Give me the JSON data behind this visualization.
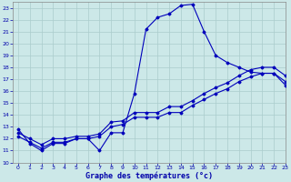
{
  "title": "Graphe des températures (°c)",
  "bg_color": "#cce8e8",
  "grid_color": "#aacccc",
  "line_color": "#0000bb",
  "xlim": [
    -0.5,
    23
  ],
  "ylim": [
    10,
    23.5
  ],
  "xticks": [
    0,
    1,
    2,
    3,
    4,
    5,
    6,
    7,
    8,
    9,
    10,
    11,
    12,
    13,
    14,
    15,
    16,
    17,
    18,
    19,
    20,
    21,
    22,
    23
  ],
  "yticks": [
    10,
    11,
    12,
    13,
    14,
    15,
    16,
    17,
    18,
    19,
    20,
    21,
    22,
    23
  ],
  "curve1_x": [
    0,
    1,
    2,
    3,
    4,
    5,
    6,
    7,
    8,
    9,
    10,
    11,
    12,
    13,
    14,
    15,
    16,
    17,
    18,
    19,
    20,
    21,
    22,
    23
  ],
  "curve1_y": [
    12.8,
    11.6,
    11.0,
    11.6,
    11.6,
    12.0,
    12.0,
    11.0,
    12.5,
    12.5,
    15.8,
    21.2,
    22.2,
    22.5,
    23.2,
    23.3,
    21.0,
    19.0,
    18.4,
    18.0,
    17.6,
    17.5,
    17.5,
    16.5
  ],
  "curve2_x": [
    0,
    1,
    2,
    3,
    4,
    5,
    6,
    7,
    8,
    9,
    10,
    11,
    12,
    13,
    14,
    15,
    16,
    17,
    18,
    19,
    20,
    21,
    22,
    23
  ],
  "curve2_y": [
    12.2,
    11.7,
    11.2,
    11.7,
    11.7,
    12.0,
    12.0,
    12.2,
    13.0,
    13.2,
    13.8,
    13.8,
    13.8,
    14.2,
    14.2,
    14.8,
    15.3,
    15.8,
    16.2,
    16.8,
    17.2,
    17.5,
    17.5,
    16.8
  ],
  "curve3_x": [
    0,
    1,
    2,
    3,
    4,
    5,
    6,
    7,
    8,
    9,
    10,
    11,
    12,
    13,
    14,
    15,
    16,
    17,
    18,
    19,
    20,
    21,
    22,
    23
  ],
  "curve3_y": [
    12.5,
    12.0,
    11.5,
    12.0,
    12.0,
    12.2,
    12.2,
    12.4,
    13.4,
    13.5,
    14.2,
    14.2,
    14.2,
    14.7,
    14.7,
    15.2,
    15.8,
    16.3,
    16.7,
    17.3,
    17.8,
    18.0,
    18.0,
    17.3
  ]
}
